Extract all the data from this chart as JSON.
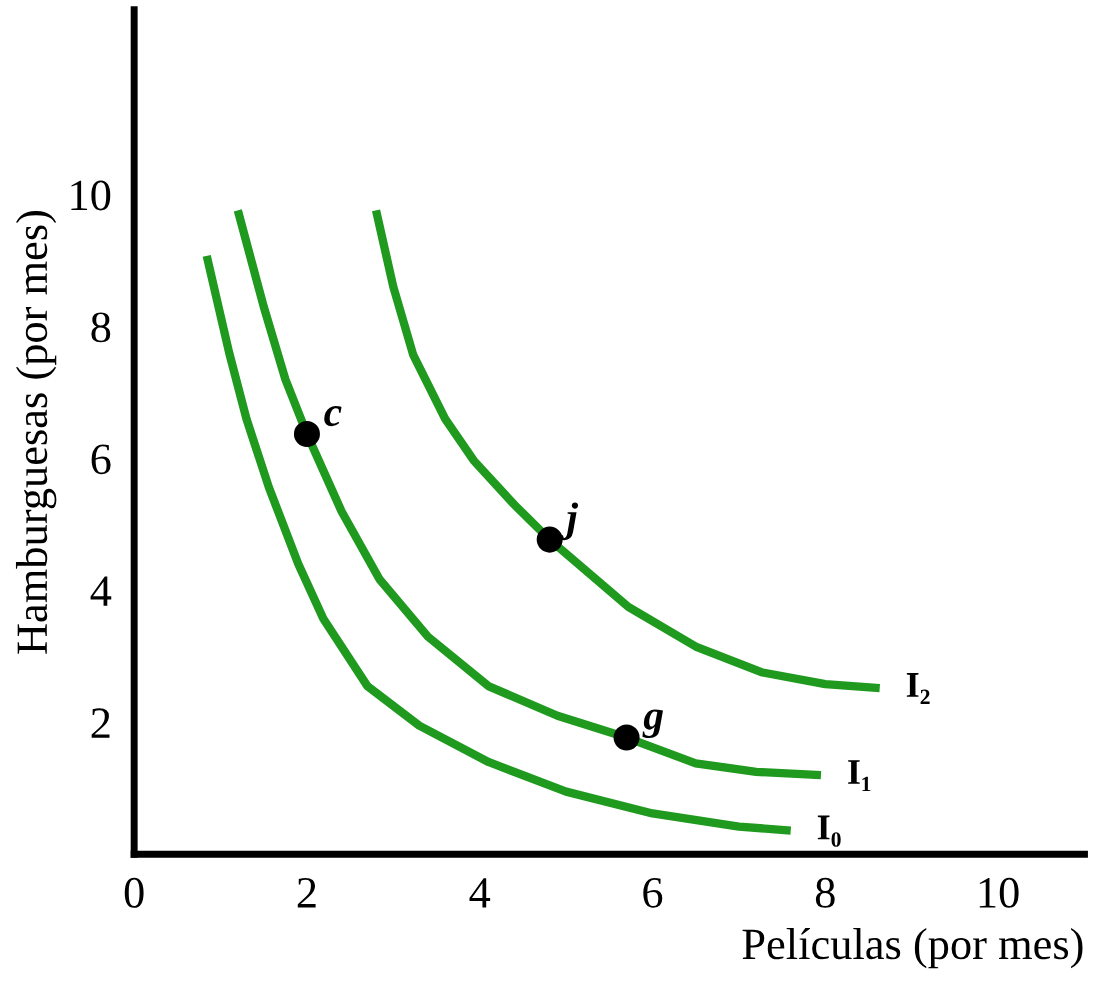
{
  "chart_data": {
    "type": "line",
    "xlabel": "Películas (por mes)",
    "ylabel": "Hamburguesas (por mes)",
    "xlim": [
      0,
      11
    ],
    "ylim": [
      0,
      12.8
    ],
    "xticks": [
      0,
      2,
      4,
      6,
      8,
      10
    ],
    "yticks": [
      2,
      4,
      6,
      8,
      10
    ],
    "grid": false,
    "legend": false,
    "marker": "none",
    "line_style": "solid",
    "series": [
      {
        "name": "I₀",
        "color": "#1f9a1f",
        "x": [
          0.84,
          1.1,
          1.3,
          1.56,
          1.9,
          2.19,
          2.7,
          3.3,
          4.1,
          5.0,
          6.0,
          7.0,
          7.6
        ],
        "values": [
          9.07,
          7.6,
          6.6,
          5.56,
          4.4,
          3.57,
          2.55,
          1.95,
          1.4,
          0.95,
          0.62,
          0.42,
          0.36
        ]
      },
      {
        "name": "I₁",
        "color": "#1f9a1f",
        "x": [
          1.2,
          1.5,
          1.75,
          2.0,
          2.4,
          2.84,
          3.4,
          4.1,
          4.9,
          5.7,
          6.5,
          7.2,
          7.95
        ],
        "values": [
          9.76,
          8.3,
          7.2,
          6.37,
          5.2,
          4.17,
          3.3,
          2.55,
          2.1,
          1.77,
          1.38,
          1.25,
          1.2
        ]
      },
      {
        "name": "I₂",
        "color": "#1f9a1f",
        "x": [
          2.8,
          3.0,
          3.23,
          3.6,
          3.93,
          4.4,
          4.81,
          5.72,
          6.5,
          7.26,
          8.0,
          8.63
        ],
        "values": [
          9.76,
          8.6,
          7.57,
          6.6,
          5.97,
          5.3,
          4.77,
          3.75,
          3.15,
          2.76,
          2.58,
          2.52
        ]
      },
      {
        "type": "scatter",
        "color": "#000000",
        "marker": "circle",
        "x": [
          2.0,
          4.81,
          5.7
        ],
        "values": [
          6.37,
          4.77,
          1.77
        ]
      }
    ],
    "annotations": [
      {
        "text": "c",
        "x": 2.0,
        "y": 6.37
      },
      {
        "text": "j",
        "x": 4.81,
        "y": 4.77
      },
      {
        "text": "g",
        "x": 5.7,
        "y": 1.77
      }
    ]
  }
}
